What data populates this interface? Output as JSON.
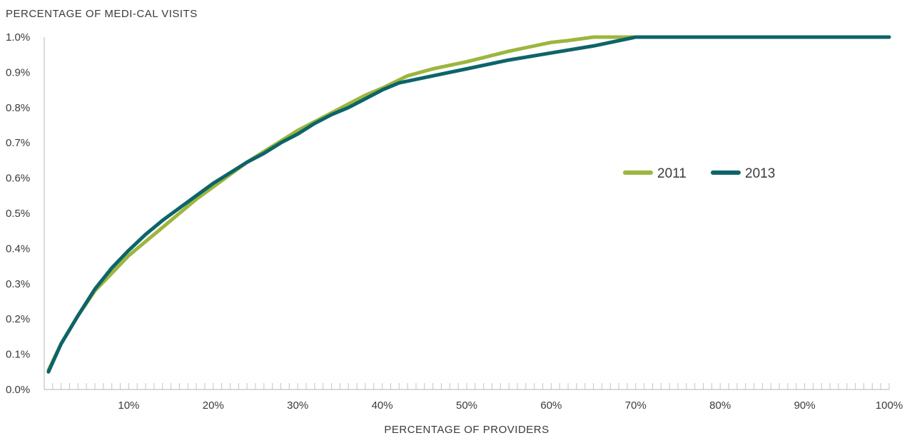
{
  "chart_data": {
    "type": "line",
    "ylabel": "PERCENTAGE OF MEDI-CAL VISITS",
    "xlabel": "PERCENTAGE OF PROVIDERS",
    "xlim": [
      0,
      100
    ],
    "ylim": [
      0.0,
      1.0
    ],
    "x_ticks": [
      10,
      20,
      30,
      40,
      50,
      60,
      70,
      80,
      90,
      100
    ],
    "x_tick_labels": [
      "10%",
      "20%",
      "30%",
      "40%",
      "50%",
      "60%",
      "70%",
      "80%",
      "90%",
      "100%"
    ],
    "y_ticks": [
      0.0,
      0.1,
      0.2,
      0.3,
      0.4,
      0.5,
      0.6,
      0.7,
      0.8,
      0.9,
      1.0
    ],
    "y_tick_labels": [
      "0.0%",
      "0.1%",
      "0.2%",
      "0.3%",
      "0.4%",
      "0.5%",
      "0.6%",
      "0.7%",
      "0.8%",
      "0.9%",
      "1.0%"
    ],
    "legend": {
      "placement": "right-middle"
    },
    "series": [
      {
        "name": "2011",
        "color": "#9cb63e",
        "x": [
          0.5,
          2,
          4,
          6,
          8,
          10,
          12,
          14,
          16,
          18,
          20,
          22,
          24,
          26,
          28,
          30,
          32,
          34,
          36,
          38,
          40,
          43,
          46,
          50,
          55,
          60,
          62,
          65,
          70,
          75,
          80,
          90,
          100
        ],
        "y": [
          0.055,
          0.13,
          0.21,
          0.28,
          0.33,
          0.38,
          0.42,
          0.46,
          0.5,
          0.54,
          0.575,
          0.61,
          0.645,
          0.675,
          0.705,
          0.735,
          0.76,
          0.785,
          0.81,
          0.835,
          0.855,
          0.89,
          0.91,
          0.93,
          0.96,
          0.985,
          0.99,
          1.0,
          1.0,
          1.0,
          1.0,
          1.0,
          1.0
        ]
      },
      {
        "name": "2013",
        "color": "#0d6469",
        "x": [
          0.5,
          2,
          4,
          6,
          8,
          10,
          12,
          14,
          16,
          18,
          20,
          22,
          24,
          26,
          28,
          30,
          32,
          34,
          36,
          38,
          40,
          42,
          46,
          50,
          55,
          60,
          65,
          69,
          70,
          75,
          80,
          90,
          100
        ],
        "y": [
          0.05,
          0.13,
          0.21,
          0.285,
          0.345,
          0.395,
          0.44,
          0.48,
          0.515,
          0.55,
          0.585,
          0.615,
          0.645,
          0.67,
          0.7,
          0.725,
          0.755,
          0.78,
          0.8,
          0.825,
          0.85,
          0.87,
          0.89,
          0.91,
          0.935,
          0.955,
          0.975,
          0.995,
          1.0,
          1.0,
          1.0,
          1.0,
          1.0
        ]
      }
    ]
  }
}
